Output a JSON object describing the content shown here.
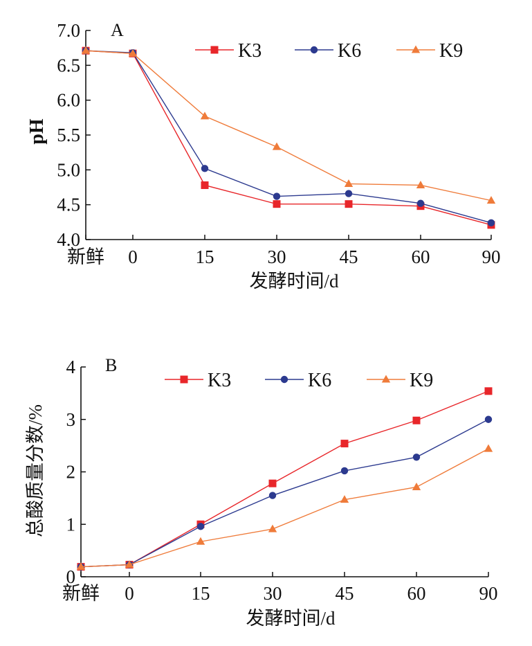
{
  "colors": {
    "K3": "#e8262a",
    "K6": "#2c3a8f",
    "K9": "#ef7b3a",
    "axis": "#111111"
  },
  "chart_data": [
    {
      "type": "line",
      "panel_label": "A",
      "title": "",
      "xlabel": "发酵时间/d",
      "ylabel": "pH",
      "categories": [
        "新鲜",
        "0",
        "15",
        "30",
        "45",
        "60",
        "90"
      ],
      "yticks": [
        "4.0",
        "4.5",
        "5.0",
        "5.5",
        "6.0",
        "6.5",
        "7.0"
      ],
      "ylim": [
        4.0,
        7.0
      ],
      "legend_position": "top-right",
      "series": [
        {
          "name": "K3",
          "marker": "square",
          "values": [
            6.71,
            6.67,
            4.78,
            4.51,
            4.51,
            4.48,
            4.21
          ]
        },
        {
          "name": "K6",
          "marker": "circle",
          "values": [
            6.71,
            6.68,
            5.02,
            4.62,
            4.66,
            4.52,
            4.24
          ]
        },
        {
          "name": "K9",
          "marker": "triangle",
          "values": [
            6.71,
            6.67,
            5.77,
            5.33,
            4.8,
            4.78,
            4.56
          ]
        }
      ]
    },
    {
      "type": "line",
      "panel_label": "B",
      "title": "",
      "xlabel": "发酵时间/d",
      "ylabel": "总酸质量分数/%",
      "categories": [
        "新鲜",
        "0",
        "15",
        "30",
        "45",
        "60",
        "90"
      ],
      "yticks": [
        "0",
        "1",
        "2",
        "3",
        "4"
      ],
      "ylim": [
        0,
        4
      ],
      "legend_position": "top",
      "series": [
        {
          "name": "K3",
          "marker": "square",
          "values": [
            0.19,
            0.23,
            1.0,
            1.78,
            2.54,
            2.98,
            3.54
          ]
        },
        {
          "name": "K6",
          "marker": "circle",
          "values": [
            0.19,
            0.23,
            0.96,
            1.55,
            2.02,
            2.28,
            3.0
          ]
        },
        {
          "name": "K9",
          "marker": "triangle",
          "values": [
            0.19,
            0.23,
            0.67,
            0.91,
            1.47,
            1.71,
            2.44
          ]
        }
      ]
    }
  ]
}
